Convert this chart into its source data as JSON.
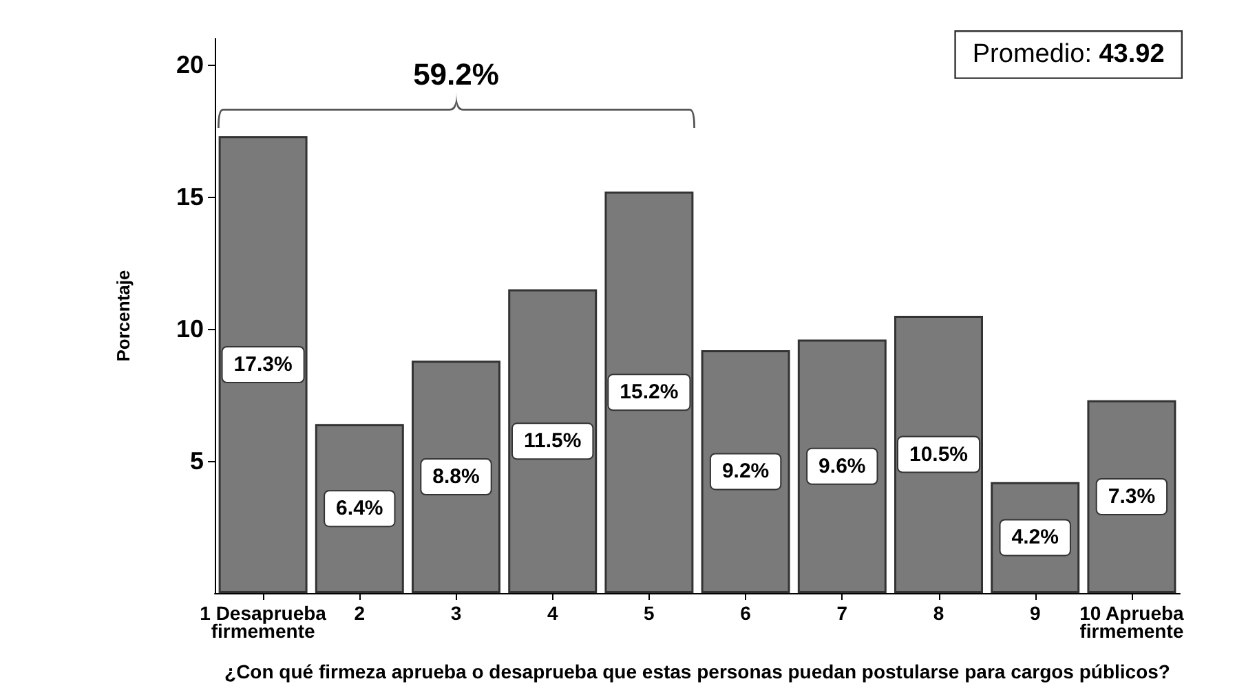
{
  "chart_data": {
    "type": "bar",
    "xlabel": "¿Con qué firmeza aprueba o desaprueba que estas personas puedan postularse para cargos públicos?",
    "ylabel": "Porcentaje",
    "categories": [
      "1 Desaprueba\nfirmemente",
      "2",
      "3",
      "4",
      "5",
      "6",
      "7",
      "8",
      "9",
      "10 Aprueba\nfirmemente"
    ],
    "values": [
      17.3,
      6.4,
      8.8,
      11.5,
      15.2,
      9.2,
      9.6,
      10.5,
      4.2,
      7.3
    ],
    "value_labels": [
      "17.3%",
      "6.4%",
      "8.8%",
      "11.5%",
      "15.2%",
      "9.2%",
      "9.6%",
      "10.5%",
      "4.2%",
      "7.3%"
    ],
    "color": "#7a7a7a",
    "ylim": [
      0,
      21
    ],
    "yticks": [
      5,
      10,
      15,
      20
    ],
    "grid": false,
    "annotations": [
      "59.2%",
      "Promedio: 43.92"
    ]
  }
}
